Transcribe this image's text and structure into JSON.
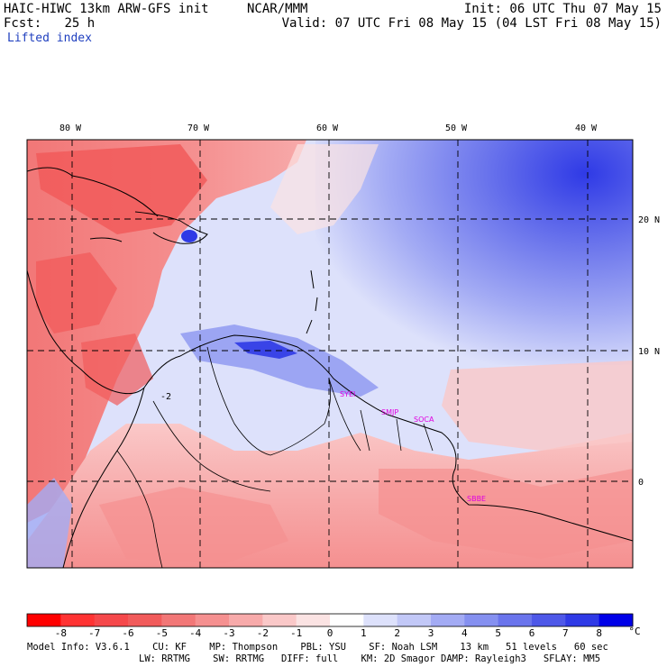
{
  "header": {
    "model": "HAIC-HIWC 13km ARW-GFS init",
    "org": "NCAR/MMM",
    "fcst_label": "Fcst:",
    "fcst_value": "25 h",
    "init": "Init: 06 UTC Thu 07 May 15",
    "valid": "Valid: 07 UTC Fri 08 May 15 (04 LST Fri 08 May 15)",
    "field": "Lifted index"
  },
  "map": {
    "lon_labels": [
      "80 W",
      "70 W",
      "60 W",
      "50 W",
      "40 W"
    ],
    "lat_labels": [
      "20 N",
      "10 N",
      "0"
    ],
    "stations": [
      "SYEI",
      "SMJP",
      "SOCA",
      "SBBE"
    ],
    "contour_label": "-2"
  },
  "colorbar": {
    "labels": [
      "-8",
      "-7",
      "-6",
      "-5",
      "-4",
      "-3",
      "-2",
      "-1",
      "0",
      "1",
      "2",
      "3",
      "4",
      "5",
      "6",
      "7",
      "8"
    ],
    "unit": "°C",
    "colors": [
      "#ff0000",
      "#ff3333",
      "#f5484b",
      "#f15b5b",
      "#f27777",
      "#f59090",
      "#f7aaaa",
      "#fac8c8",
      "#fbe3e3",
      "#ffffff",
      "#dde1fb",
      "#c2c8f7",
      "#a3abf4",
      "#8590f0",
      "#6a74ec",
      "#4e58e8",
      "#2f3ae6",
      "#0000e8"
    ]
  },
  "model_info": {
    "line1": "Model Info: V3.6.1    CU: KF    MP: Thompson    PBL: YSU    SF: Noah LSM    13 km   51 levels   60 sec",
    "line2": "LW: RRTMG    SW: RRTMG   DIFF: full    KM: 2D Smagor DAMP: Rayleigh3   SFLAY: MM5"
  }
}
